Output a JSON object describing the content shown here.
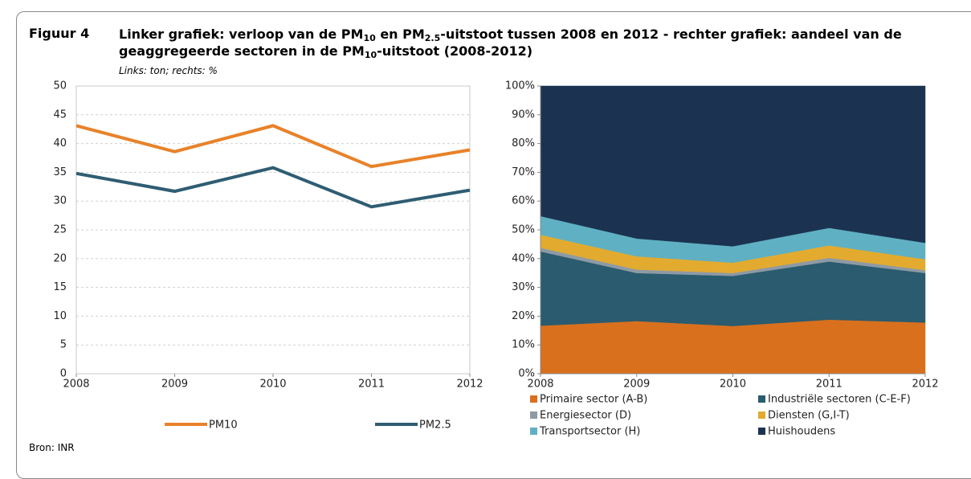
{
  "figure_label": "Figuur 4",
  "title_parts": [
    "Linker grafiek: verloop van de PM",
    "10",
    " en PM",
    "2.5",
    "-uitstoot tussen 2008 en 2012 - rechter grafiek: aandeel van de geaggregeerde sectoren in de PM",
    "10",
    "-uitstoot (2008-2012)"
  ],
  "subtitle": "Links: ton; rechts: %",
  "source": "Bron: INR",
  "chart_data": [
    {
      "type": "line",
      "categories": [
        "2008",
        "2009",
        "2010",
        "2011",
        "2012"
      ],
      "series": [
        {
          "name": "PM10",
          "color": "#e8822a",
          "values": [
            43.1,
            38.6,
            43.1,
            36.0,
            38.9
          ]
        },
        {
          "name": "PM2.5",
          "color": "#2f5d72",
          "values": [
            34.8,
            31.7,
            35.8,
            29.0,
            31.9
          ]
        }
      ],
      "ylim": [
        0,
        50
      ],
      "yticks": [
        0,
        5,
        10,
        15,
        20,
        25,
        30,
        35,
        40,
        45,
        50
      ],
      "grid": true,
      "legend": "bottom"
    },
    {
      "type": "stacked_area",
      "categories": [
        "2008",
        "2009",
        "2010",
        "2011",
        "2012"
      ],
      "series": [
        {
          "name": "Primaire sector (A-B)",
          "color": "#d9701e",
          "values": [
            16.7,
            18.3,
            16.6,
            18.8,
            17.8
          ]
        },
        {
          "name": "Industriële sectoren (C-E-F)",
          "color": "#2a5b6e",
          "values": [
            25.8,
            16.7,
            17.4,
            20.2,
            17.2
          ]
        },
        {
          "name": "Energiesector (D)",
          "color": "#8d9aa5",
          "values": [
            1.3,
            1.2,
            1.0,
            1.3,
            1.0
          ]
        },
        {
          "name": "Diensten (G,I-T)",
          "color": "#e2ab2f",
          "values": [
            4.5,
            4.6,
            3.6,
            4.3,
            3.8
          ]
        },
        {
          "name": "Transportsector (H)",
          "color": "#5fb0c3",
          "values": [
            6.5,
            6.2,
            5.7,
            6.1,
            5.7
          ]
        },
        {
          "name": "Huishoudens",
          "color": "#1b3350",
          "values": [
            45.2,
            53.0,
            55.7,
            49.3,
            54.5
          ]
        }
      ],
      "ylim": [
        0,
        100
      ],
      "yticks": [
        {
          "value": 0,
          "label": "0%"
        },
        {
          "value": 10,
          "label": "10%"
        },
        {
          "value": 20,
          "label": "20%"
        },
        {
          "value": 30,
          "label": "30%"
        },
        {
          "value": 40,
          "label": "40%"
        },
        {
          "value": 50,
          "label": "50%"
        },
        {
          "value": 60,
          "label": "60%"
        },
        {
          "value": 70,
          "label": "70%"
        },
        {
          "value": 80,
          "label": "80%"
        },
        {
          "value": 90,
          "label": "90%"
        },
        {
          "value": 100,
          "label": "100%"
        }
      ],
      "grid": false,
      "legend": "bottom"
    }
  ]
}
